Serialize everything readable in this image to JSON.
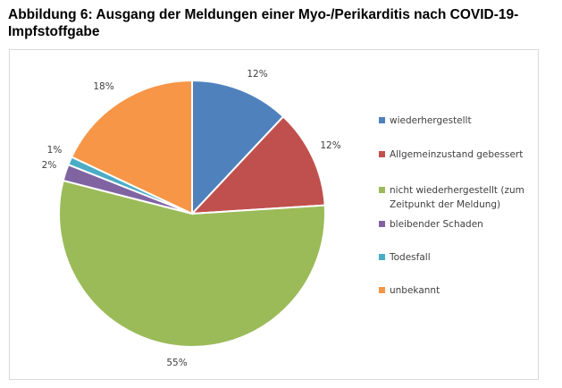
{
  "title": "Abbildung 6: Ausgang der Meldungen einer Myo-/Perikarditis nach COVID-19- Impfstoffgabe",
  "chart_data": {
    "type": "pie",
    "title": "Abbildung 6: Ausgang der Meldungen einer Myo-/Perikarditis nach COVID-19- Impfstoffgabe",
    "legend_position": "right",
    "slices": [
      {
        "label": "wiederhergestellt",
        "value": 12,
        "value_label": "12%",
        "color": "#4f81bd"
      },
      {
        "label": "Allgemeinzustand gebessert",
        "value": 12,
        "value_label": "12%",
        "color": "#c0504d"
      },
      {
        "label": "nicht wiederhergestellt (zum Zeitpunkt der Meldung)",
        "value": 55,
        "value_label": "55%",
        "color": "#9bbb59"
      },
      {
        "label": "bleibender Schaden",
        "value": 2,
        "value_label": "2%",
        "color": "#8064a2"
      },
      {
        "label": "Todesfall",
        "value": 1,
        "value_label": "1%",
        "color": "#4bacc6"
      },
      {
        "label": "unbekannt",
        "value": 18,
        "value_label": "18%",
        "color": "#f79646"
      }
    ]
  }
}
